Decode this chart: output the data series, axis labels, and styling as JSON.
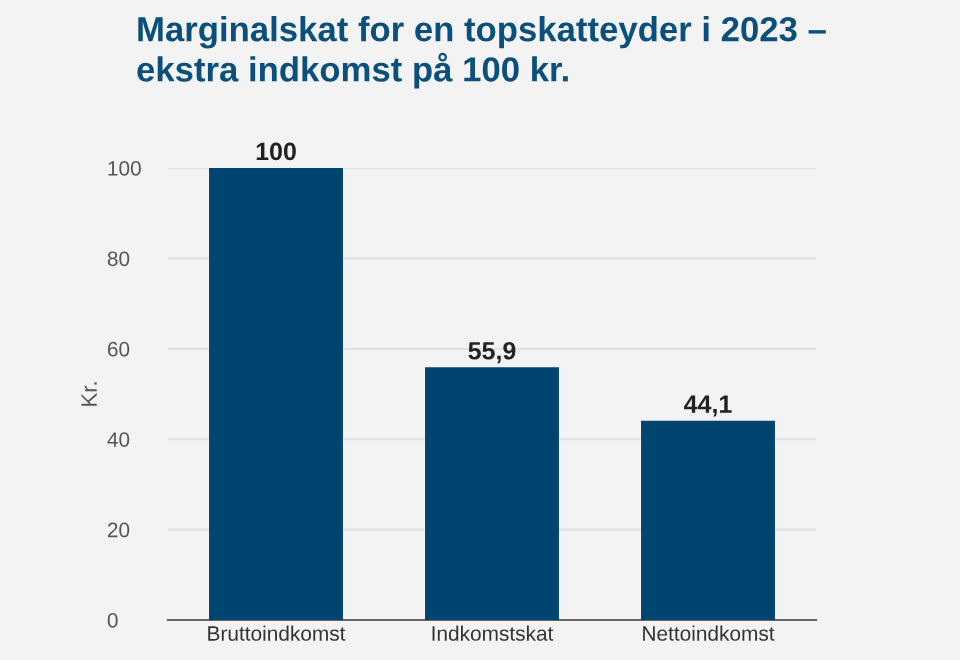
{
  "chart_data": {
    "type": "bar",
    "title": "Marginalskat for en topskatteyder i 2023 –\nekstra indkomst på 100 kr.",
    "ylabel": "Kr.",
    "categories": [
      "Bruttoindkomst",
      "Indkomstskat",
      "Nettoindkomst"
    ],
    "values": [
      100,
      55.9,
      44.1
    ],
    "value_labels": [
      "100",
      "55,9",
      "44,1"
    ],
    "color": "#004570",
    "ylim": [
      0,
      100
    ],
    "yticks": [
      0,
      20,
      40,
      60,
      80,
      100
    ],
    "grid": "y",
    "legend": false
  }
}
